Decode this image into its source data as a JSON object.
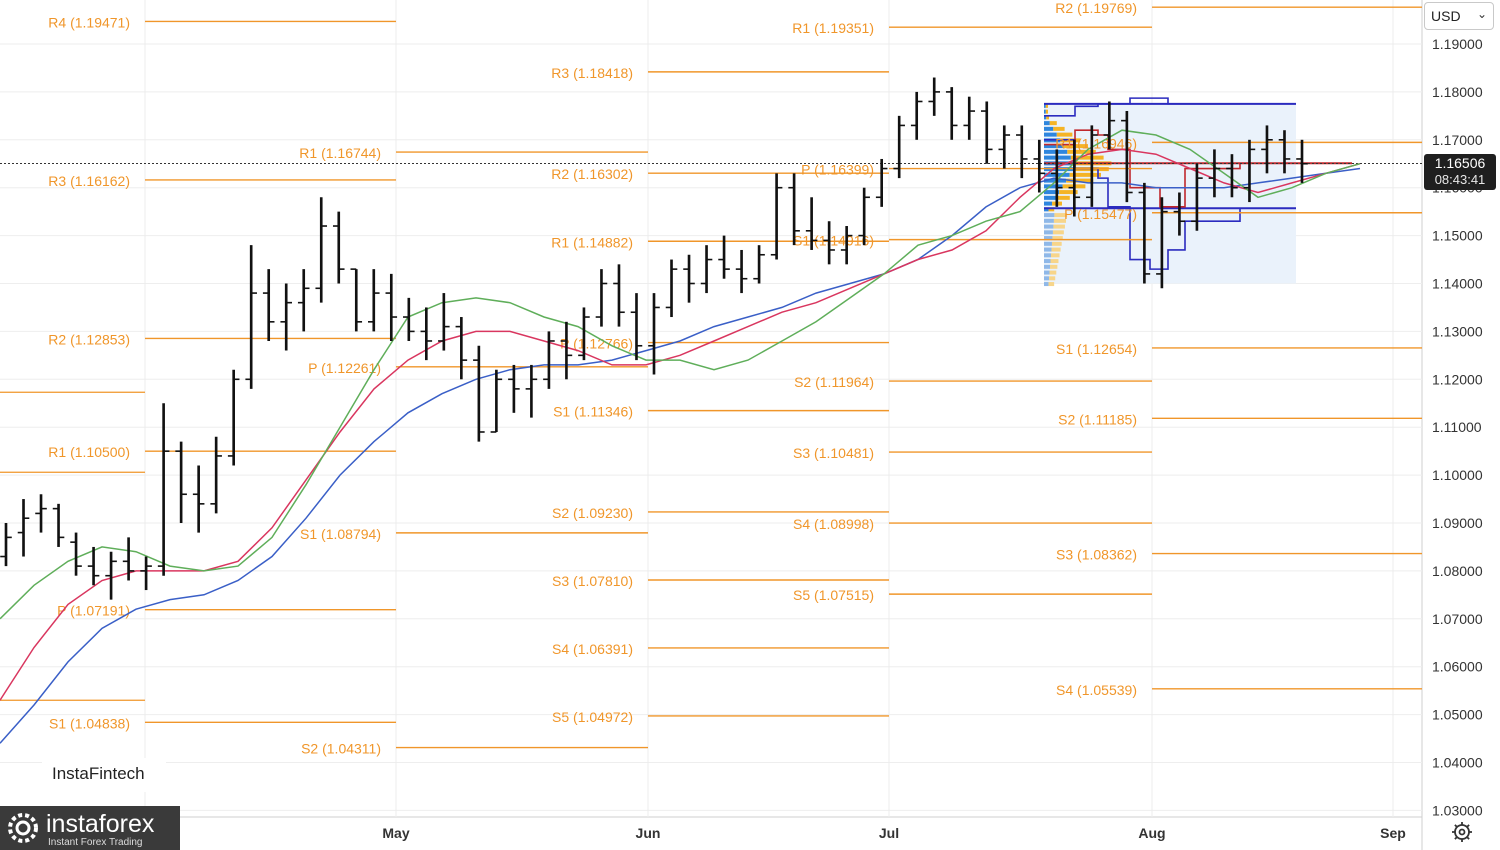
{
  "currency": {
    "label": "USD"
  },
  "last_price": {
    "value": "1.16506",
    "countdown": "08:43:41"
  },
  "branding": {
    "small_logo": "InstaFintech",
    "big_logo_name": "instaforex",
    "big_logo_tagline": "Instant Forex Trading"
  },
  "chart_data": {
    "type": "ohlc",
    "title": "",
    "ylim": [
      1.03,
      1.2
    ],
    "y_ticks": [
      "1.19000",
      "1.18000",
      "1.17000",
      "1.16000",
      "1.15000",
      "1.14000",
      "1.13000",
      "1.12000",
      "1.11000",
      "1.10000",
      "1.09000",
      "1.08000",
      "1.07000",
      "1.06000",
      "1.05000",
      "1.04000",
      "1.03000"
    ],
    "x_ticks": [
      "May",
      "Jun",
      "Jul",
      "Aug",
      "Sep"
    ],
    "pivot_periods": [
      {
        "levels": [
          {
            "label": "R4 (1.19471)",
            "value": 1.19471
          },
          {
            "label": "R3 (1.16162)",
            "value": 1.16162
          },
          {
            "label": "R2 (1.12853)",
            "value": 1.12853
          },
          {
            "label": "R1 (1.10500)",
            "value": 1.105
          },
          {
            "label": "P (1.07191)",
            "value": 1.07191
          },
          {
            "label": "S1 (1.04838)",
            "value": 1.04838
          }
        ]
      },
      {
        "levels": [
          {
            "label": "R1 (1.16744)",
            "value": 1.16744
          },
          {
            "label": "P (1.12261)",
            "value": 1.12261
          },
          {
            "label": "S1 (1.08794)",
            "value": 1.08794
          },
          {
            "label": "S2 (1.04311)",
            "value": 1.04311
          }
        ]
      },
      {
        "levels": [
          {
            "label": "R3 (1.18418)",
            "value": 1.18418
          },
          {
            "label": "R2 (1.16302)",
            "value": 1.16302
          },
          {
            "label": "R1 (1.14882)",
            "value": 1.14882
          },
          {
            "label": "P (1.12766)",
            "value": 1.12766
          },
          {
            "label": "S1 (1.11346)",
            "value": 1.11346
          },
          {
            "label": "S2 (1.09230)",
            "value": 1.0923
          },
          {
            "label": "S3 (1.07810)",
            "value": 1.0781
          },
          {
            "label": "S4 (1.06391)",
            "value": 1.06391
          },
          {
            "label": "S5 (1.04972)",
            "value": 1.04972
          }
        ]
      },
      {
        "levels": [
          {
            "label": "R1 (1.19351)",
            "value": 1.19351
          },
          {
            "label": "P (1.16399)",
            "value": 1.16399
          },
          {
            "label": "S1 (1.14916)",
            "value": 1.14916
          },
          {
            "label": "S2 (1.11964)",
            "value": 1.11964
          },
          {
            "label": "S3 (1.10481)",
            "value": 1.10481
          },
          {
            "label": "S4 (1.08998)",
            "value": 1.08998
          },
          {
            "label": "S5 (1.07515)",
            "value": 1.07515
          }
        ]
      },
      {
        "levels": [
          {
            "label": "R2 (1.19769)",
            "value": 1.19769
          },
          {
            "label": "R1 (1.16946)",
            "value": 1.16946
          },
          {
            "label": "P (1.15477)",
            "value": 1.15477
          },
          {
            "label": "S1 (1.12654)",
            "value": 1.12654
          },
          {
            "label": "S2 (1.11185)",
            "value": 1.11185
          },
          {
            "label": "S3 (1.08362)",
            "value": 1.08362
          },
          {
            "label": "S4 (1.05539)",
            "value": 1.05539
          }
        ]
      }
    ],
    "bars": [
      [
        1.083,
        1.09,
        1.081,
        1.087
      ],
      [
        1.088,
        1.095,
        1.083,
        1.091
      ],
      [
        1.092,
        1.096,
        1.088,
        1.093
      ],
      [
        1.093,
        1.094,
        1.085,
        1.087
      ],
      [
        1.086,
        1.088,
        1.079,
        1.081
      ],
      [
        1.081,
        1.085,
        1.077,
        1.079
      ],
      [
        1.079,
        1.084,
        1.074,
        1.082
      ],
      [
        1.082,
        1.087,
        1.078,
        1.08
      ],
      [
        1.08,
        1.083,
        1.076,
        1.081
      ],
      [
        1.081,
        1.115,
        1.079,
        1.105
      ],
      [
        1.105,
        1.107,
        1.09,
        1.096
      ],
      [
        1.096,
        1.102,
        1.088,
        1.094
      ],
      [
        1.094,
        1.108,
        1.092,
        1.104
      ],
      [
        1.104,
        1.122,
        1.102,
        1.12
      ],
      [
        1.12,
        1.148,
        1.118,
        1.138
      ],
      [
        1.138,
        1.143,
        1.128,
        1.132
      ],
      [
        1.132,
        1.14,
        1.126,
        1.136
      ],
      [
        1.136,
        1.143,
        1.13,
        1.139
      ],
      [
        1.139,
        1.158,
        1.136,
        1.152
      ],
      [
        1.152,
        1.155,
        1.14,
        1.143
      ],
      [
        1.143,
        1.143,
        1.13,
        1.132
      ],
      [
        1.132,
        1.143,
        1.13,
        1.138
      ],
      [
        1.138,
        1.142,
        1.128,
        1.133
      ],
      [
        1.133,
        1.137,
        1.128,
        1.13
      ],
      [
        1.13,
        1.135,
        1.124,
        1.128
      ],
      [
        1.128,
        1.138,
        1.126,
        1.131
      ],
      [
        1.131,
        1.133,
        1.12,
        1.124
      ],
      [
        1.124,
        1.127,
        1.107,
        1.109
      ],
      [
        1.109,
        1.122,
        1.109,
        1.12
      ],
      [
        1.12,
        1.123,
        1.113,
        1.118
      ],
      [
        1.118,
        1.123,
        1.112,
        1.12
      ],
      [
        1.12,
        1.13,
        1.118,
        1.128
      ],
      [
        1.128,
        1.132,
        1.12,
        1.125
      ],
      [
        1.125,
        1.135,
        1.124,
        1.133
      ],
      [
        1.133,
        1.143,
        1.131,
        1.14
      ],
      [
        1.14,
        1.144,
        1.131,
        1.134
      ],
      [
        1.134,
        1.138,
        1.124,
        1.127
      ],
      [
        1.127,
        1.138,
        1.121,
        1.135
      ],
      [
        1.135,
        1.145,
        1.133,
        1.143
      ],
      [
        1.143,
        1.146,
        1.136,
        1.14
      ],
      [
        1.14,
        1.148,
        1.138,
        1.145
      ],
      [
        1.145,
        1.15,
        1.141,
        1.143
      ],
      [
        1.143,
        1.147,
        1.138,
        1.141
      ],
      [
        1.141,
        1.148,
        1.14,
        1.146
      ],
      [
        1.146,
        1.163,
        1.145,
        1.16
      ],
      [
        1.16,
        1.163,
        1.148,
        1.151
      ],
      [
        1.151,
        1.158,
        1.147,
        1.149
      ],
      [
        1.149,
        1.153,
        1.144,
        1.147
      ],
      [
        1.147,
        1.152,
        1.144,
        1.15
      ],
      [
        1.15,
        1.16,
        1.148,
        1.158
      ],
      [
        1.158,
        1.166,
        1.156,
        1.164
      ],
      [
        1.164,
        1.175,
        1.162,
        1.173
      ],
      [
        1.173,
        1.18,
        1.17,
        1.178
      ],
      [
        1.178,
        1.183,
        1.175,
        1.18
      ],
      [
        1.18,
        1.181,
        1.17,
        1.173
      ],
      [
        1.173,
        1.179,
        1.17,
        1.176
      ],
      [
        1.176,
        1.178,
        1.165,
        1.168
      ],
      [
        1.168,
        1.173,
        1.164,
        1.171
      ],
      [
        1.171,
        1.173,
        1.162,
        1.166
      ],
      [
        1.166,
        1.17,
        1.159,
        1.163
      ],
      [
        1.163,
        1.168,
        1.156,
        1.16
      ],
      [
        1.16,
        1.17,
        1.154,
        1.158
      ],
      [
        1.158,
        1.173,
        1.156,
        1.171
      ],
      [
        1.171,
        1.178,
        1.168,
        1.174
      ],
      [
        1.174,
        1.176,
        1.157,
        1.159
      ],
      [
        1.159,
        1.161,
        1.14,
        1.142
      ],
      [
        1.142,
        1.158,
        1.139,
        1.155
      ],
      [
        1.155,
        1.159,
        1.15,
        1.153
      ],
      [
        1.153,
        1.165,
        1.151,
        1.162
      ],
      [
        1.162,
        1.168,
        1.158,
        1.164
      ],
      [
        1.164,
        1.167,
        1.158,
        1.16
      ],
      [
        1.16,
        1.17,
        1.157,
        1.168
      ],
      [
        1.168,
        1.173,
        1.163,
        1.17
      ],
      [
        1.17,
        1.172,
        1.163,
        1.166
      ],
      [
        1.166,
        1.17,
        1.161,
        1.165
      ]
    ],
    "ma_green": [
      1.07,
      1.077,
      1.082,
      1.085,
      1.084,
      1.081,
      1.08,
      1.081,
      1.087,
      1.098,
      1.11,
      1.122,
      1.133,
      1.136,
      1.137,
      1.136,
      1.133,
      1.131,
      1.127,
      1.124,
      1.124,
      1.122,
      1.124,
      1.128,
      1.132,
      1.137,
      1.142,
      1.148,
      1.15,
      1.153,
      1.155,
      1.161,
      1.168,
      1.172,
      1.171,
      1.168,
      1.163,
      1.158,
      1.16,
      1.163,
      1.165
    ],
    "ma_red": [
      1.053,
      1.064,
      1.073,
      1.078,
      1.08,
      1.08,
      1.08,
      1.082,
      1.089,
      1.099,
      1.109,
      1.118,
      1.124,
      1.128,
      1.13,
      1.13,
      1.128,
      1.126,
      1.123,
      1.123,
      1.125,
      1.128,
      1.131,
      1.134,
      1.136,
      1.139,
      1.142,
      1.145,
      1.147,
      1.151,
      1.158,
      1.164,
      1.167,
      1.168,
      1.167,
      1.164,
      1.161,
      1.159,
      1.161,
      1.163,
      1.165
    ],
    "ma_blue": [
      1.044,
      1.052,
      1.061,
      1.068,
      1.072,
      1.074,
      1.075,
      1.078,
      1.083,
      1.091,
      1.1,
      1.107,
      1.113,
      1.117,
      1.12,
      1.122,
      1.123,
      1.123,
      1.124,
      1.126,
      1.128,
      1.131,
      1.133,
      1.135,
      1.138,
      1.14,
      1.142,
      1.145,
      1.15,
      1.156,
      1.16,
      1.162,
      1.161,
      1.161,
      1.16,
      1.16,
      1.16,
      1.161,
      1.162,
      1.163,
      1.164
    ],
    "volume_profile": {
      "high": 1.1775,
      "poc": 1.1651,
      "low": 1.1557,
      "bottom": 1.14
    }
  }
}
